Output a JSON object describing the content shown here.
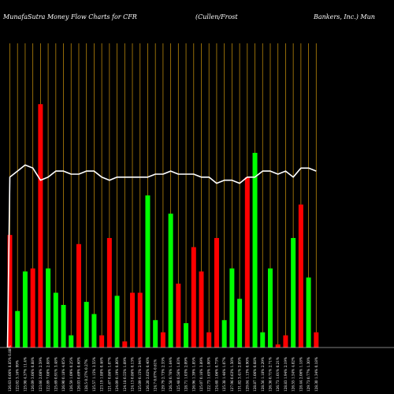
{
  "header": {
    "left": "MunafaSutra  Money Flow  Charts for CFR",
    "mid": "(Cullen/Frost",
    "right": "Bankers,  Inc.) Mun"
  },
  "colors": {
    "background": "#000000",
    "up": "#00ff00",
    "down": "#ff0000",
    "grid": "#b8860b",
    "line": "#ffffff"
  },
  "chart_data": {
    "type": "bar",
    "values_units": "relative money flow (0-100 of plot height)",
    "line_units": "relative price (0-100 of plot height)",
    "categories": [
      "126.63 0.06% 8.85% 0.88%",
      "122.02 3.16% 99%",
      "125.98 4.37% 11.4%",
      "126.09 3.06% 0.88%",
      "123.66 2.08% 2.59%",
      "122.89 7.08% 2.88%",
      "125.69 0.91% 3.48%",
      "126.90 0.18% 4.05%",
      "126.59 1.09% 0.25%",
      "126.03 0.69% 0.60%",
      "128.5 0.27% 0.27%",
      "125.57 1.15% 3.55%",
      "123.19 1.88% 0.46%",
      "121.67 0.86% 1.07%",
      "124.09 0.19% 0.80%",
      "124.18 0.55% 1.69%",
      "124.13 0.86% 0.13%",
      "125.09 0.15% 2.94%",
      "126.20 2.02% 0.40%",
      "124.7 0.07% 0.61%",
      "129.79 2.73% 2.33%",
      "126.58 0.76% 1.64%",
      "125.48 0.56% 1.83%",
      "128.71 1.03% 2.09%",
      "126.96 1.39% 1.85%",
      "125.07 0.16% 3.89%",
      "122.73 1.65% 1.00%",
      "124.68 1.06% 0.73%",
      "125.38 1.46% 1.07%",
      "127.96 0.63% 1.50%",
      "131.82 3.41% 2.85%",
      "129.04 1.13% 0.90%",
      "128.87 1.06% 0.68%",
      "128.56 1.18% 2.29%",
      "126.36 0.71% 2.71%",
      "126.73 1.01% 0.21%",
      "128.83 1.94% 2.19%",
      "126.55 1.54% 4.82%",
      "128.44 2.06% 1.18%",
      "129.73 0.77% 1.30%",
      "128.30 1.34% 0.18%"
    ],
    "bar_values": [
      37,
      12,
      25,
      26,
      80,
      26,
      18,
      14,
      4,
      34,
      15,
      11,
      4,
      36,
      17,
      2,
      18,
      18,
      50,
      9,
      5,
      44,
      21,
      8,
      33,
      25,
      5,
      36,
      9,
      26,
      16,
      56,
      64,
      5,
      26,
      1,
      4,
      36,
      47,
      23,
      5
    ],
    "bar_colors": [
      "down",
      "up",
      "up",
      "down",
      "down",
      "up",
      "up",
      "up",
      "up",
      "down",
      "up",
      "up",
      "down",
      "down",
      "up",
      "down",
      "down",
      "down",
      "up",
      "up",
      "down",
      "up",
      "down",
      "up",
      "down",
      "down",
      "down",
      "down",
      "up",
      "up",
      "up",
      "down",
      "up",
      "up",
      "up",
      "down",
      "down",
      "up",
      "down",
      "up",
      "down"
    ],
    "line_values": [
      56,
      58,
      60,
      59,
      55,
      56,
      58,
      58,
      57,
      57,
      58,
      58,
      56,
      55,
      56,
      56,
      56,
      56,
      56,
      57,
      57,
      58,
      57,
      57,
      57,
      56,
      56,
      54,
      55,
      55,
      54,
      56,
      56,
      58,
      58,
      57,
      58,
      56,
      59,
      59,
      58
    ],
    "ylim": [
      0,
      100
    ],
    "grid": "vertical"
  }
}
